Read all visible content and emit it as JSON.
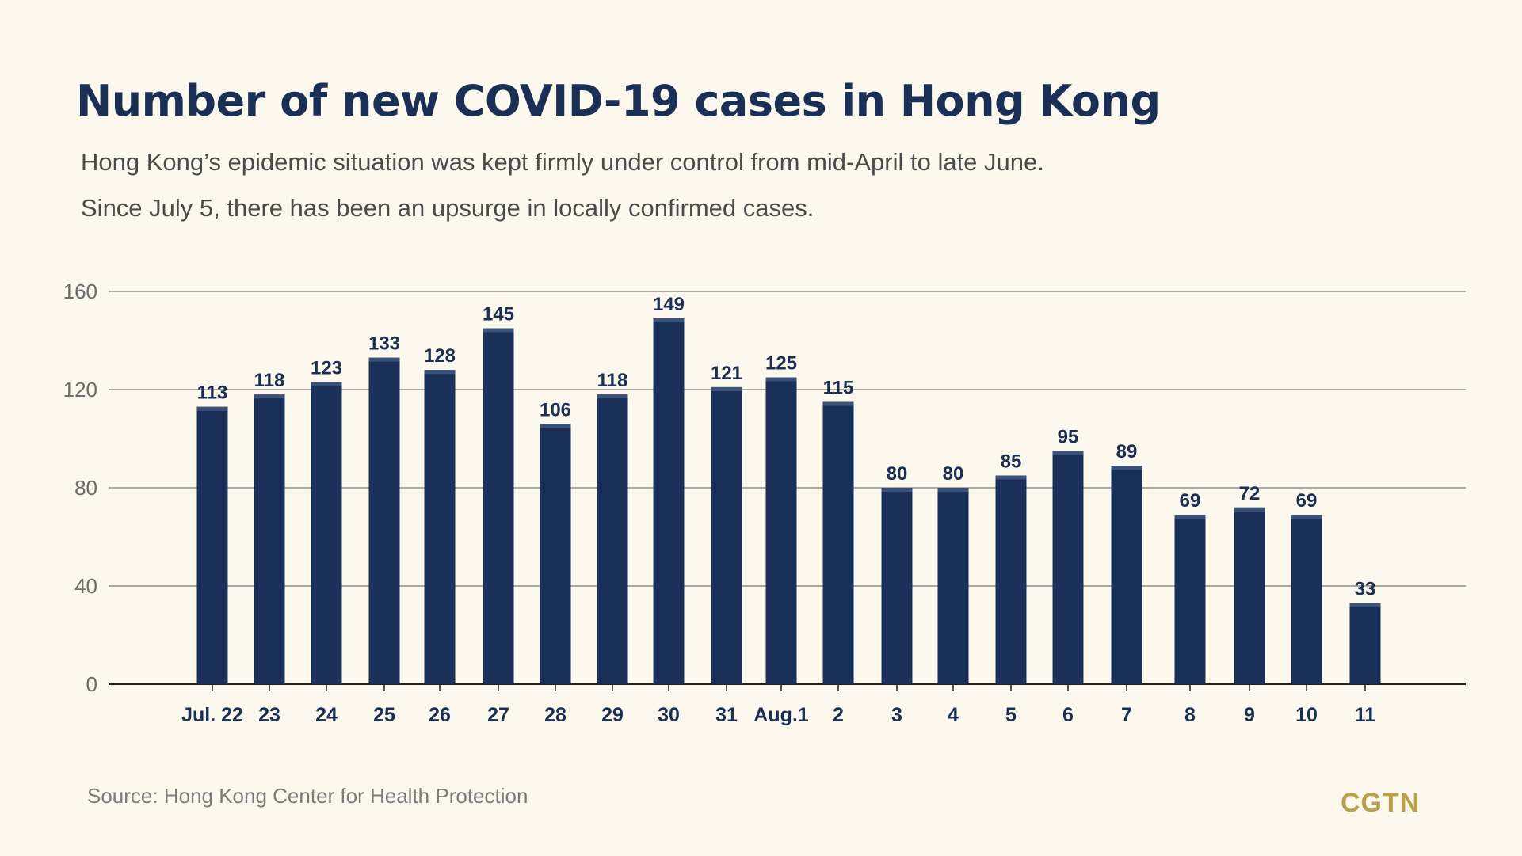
{
  "header": {
    "title": "Number of new COVID-19 cases in Hong Kong",
    "subtitle_line1": "Hong Kong’s epidemic situation was kept firmly under control from mid-April to late June.",
    "subtitle_line2": "Since July 5, there has been an upsurge in locally confirmed cases."
  },
  "footer": {
    "source": "Source: Hong Kong Center for Health Protection",
    "brand": "CGTN"
  },
  "colors": {
    "bar": "#1a3058",
    "bar_cap": "#3a5178",
    "gridline": "#7a7a7a",
    "background": "#fcf8ed"
  },
  "chart_data": {
    "type": "bar",
    "title": "Number of new COVID-19 cases in Hong Kong",
    "xlabel": "",
    "ylabel": "",
    "ylim": [
      0,
      160
    ],
    "yticks": [
      0,
      40,
      80,
      120,
      160
    ],
    "grid": true,
    "categories": [
      "Jul. 22",
      "23",
      "24",
      "25",
      "26",
      "27",
      "28",
      "29",
      "30",
      "31",
      "Aug.1",
      "2",
      "3",
      "4",
      "5",
      "6",
      "7",
      "8",
      "9",
      "10",
      "11"
    ],
    "values": [
      113,
      118,
      123,
      133,
      128,
      145,
      106,
      118,
      149,
      121,
      125,
      115,
      80,
      80,
      85,
      95,
      89,
      69,
      72,
      69,
      33
    ]
  }
}
